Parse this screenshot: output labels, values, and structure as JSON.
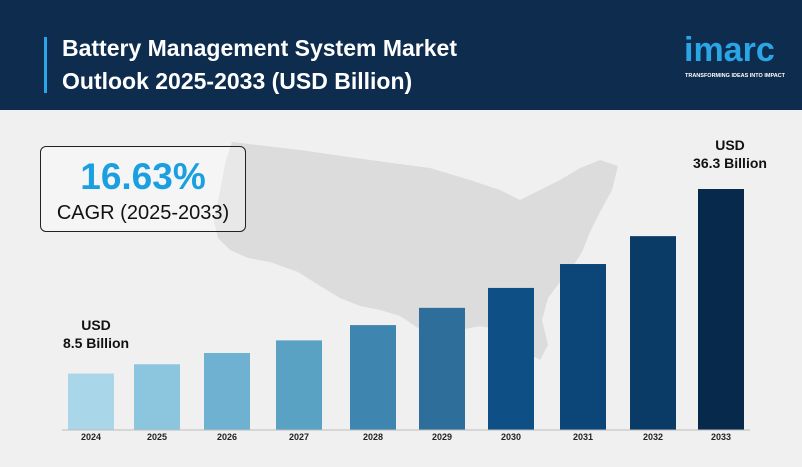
{
  "header": {
    "title_line1": "Battery Management System Market",
    "title_line2": "Outlook 2025-2033 (USD Billion)"
  },
  "logo": {
    "word": "imarc",
    "tagline": "TRANSFORMING IDEAS INTO IMPACT"
  },
  "cagr": {
    "value": "16.63%",
    "label": "CAGR (2025-2033)"
  },
  "annotations": {
    "first_line1": "USD",
    "first_line2": "8.5 Billion",
    "last_line1": "USD",
    "last_line2": "36.3 Billion"
  },
  "colors": {
    "header_bg": "#0d2c4e",
    "accent": "#2aa6e6",
    "map": "#dcdcdc",
    "bars": [
      "#a9d6e8",
      "#8cc5de",
      "#6fb1d0",
      "#5aa2c4",
      "#3e86af",
      "#2d6f9a",
      "#0e4f86",
      "#0c4577",
      "#0a3a66",
      "#072a4c"
    ]
  },
  "chart_data": {
    "type": "bar",
    "categories": [
      "2024",
      "2025",
      "2026",
      "2027",
      "2028",
      "2029",
      "2030",
      "2031",
      "2032",
      "2033"
    ],
    "values": [
      8.5,
      9.9,
      11.6,
      13.5,
      15.8,
      18.4,
      21.4,
      25.0,
      29.2,
      36.3
    ],
    "unit": "USD Billion",
    "ylim": [
      0,
      36.3
    ],
    "grid": false,
    "legend": "none"
  }
}
